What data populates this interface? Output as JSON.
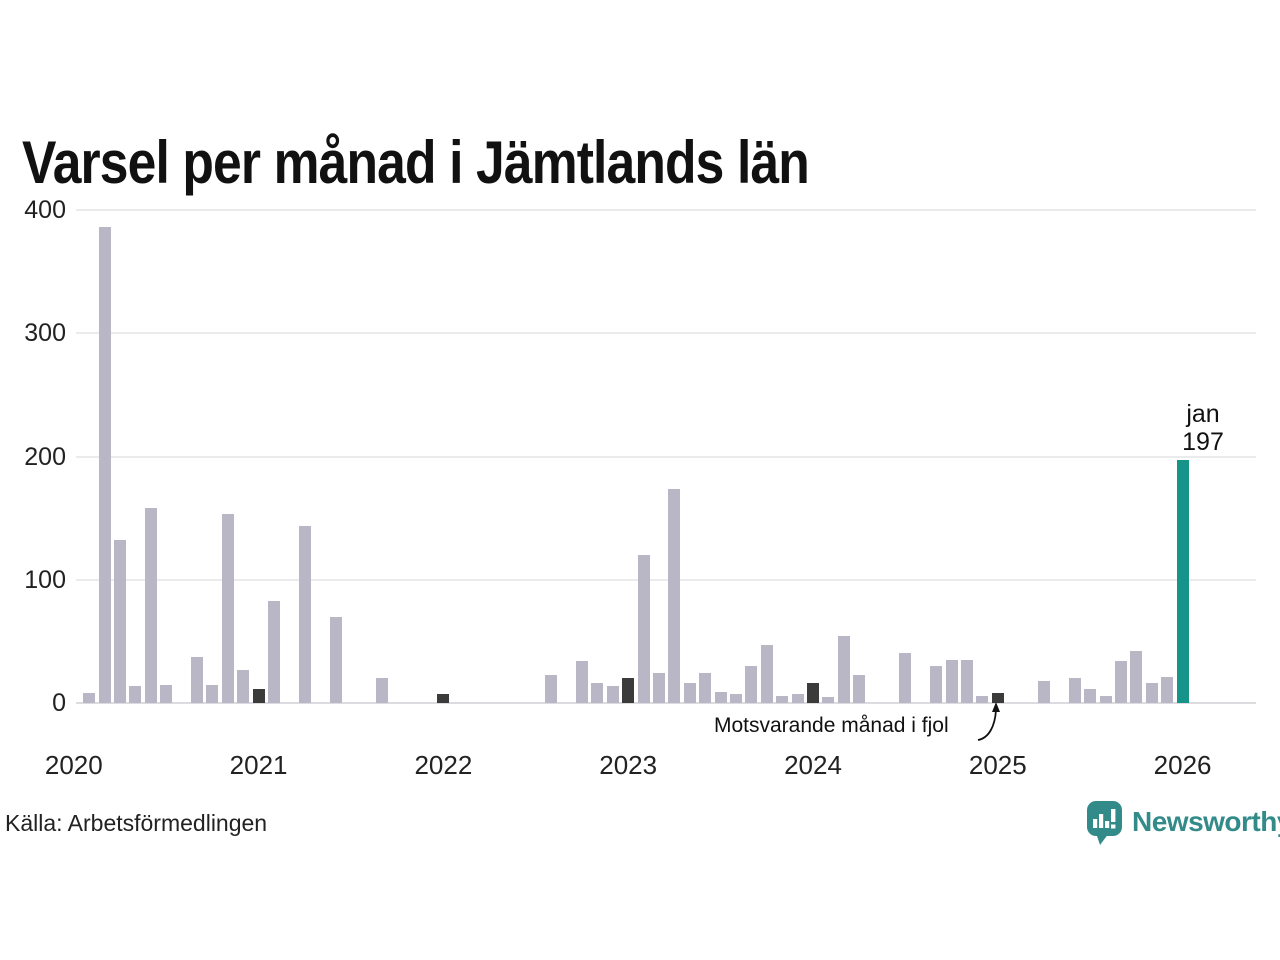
{
  "page": {
    "title": "Varsel per månad i Jämtlands län",
    "source": "Källa: Arbetsförmedlingen",
    "brand": {
      "name": "Newsworthy"
    }
  },
  "colors": {
    "bar_default": "#b9b6c5",
    "bar_previous_january": "#3b3b3b",
    "bar_latest": "#17948a",
    "grid": "#ebebee",
    "axis_line": "#dcdce0",
    "text": "#1a1a1a",
    "brand_teal": "#338b89"
  },
  "chart_data": {
    "type": "bar",
    "title": "Varsel per månad i Jämtlands län",
    "xlabel": "",
    "ylabel": "",
    "ylim": [
      0,
      400
    ],
    "yticks": [
      0,
      100,
      200,
      300,
      400
    ],
    "xticks": [
      "2020",
      "2021",
      "2022",
      "2023",
      "2024",
      "2025",
      "2026"
    ],
    "grid": "horizontal",
    "legend": "none",
    "highlight_label": {
      "month": "jan",
      "value": 197
    },
    "annotation": {
      "text": "Motsvarande månad i fjol",
      "points_to_month": "2025-01"
    },
    "series": [
      {
        "month": "2020-01",
        "value": 0,
        "role": "default"
      },
      {
        "month": "2020-02",
        "value": 8,
        "role": "default"
      },
      {
        "month": "2020-03",
        "value": 386,
        "role": "default"
      },
      {
        "month": "2020-04",
        "value": 132,
        "role": "default"
      },
      {
        "month": "2020-05",
        "value": 14,
        "role": "default"
      },
      {
        "month": "2020-06",
        "value": 158,
        "role": "default"
      },
      {
        "month": "2020-07",
        "value": 15,
        "role": "default"
      },
      {
        "month": "2020-08",
        "value": 0,
        "role": "default"
      },
      {
        "month": "2020-09",
        "value": 37,
        "role": "default"
      },
      {
        "month": "2020-10",
        "value": 15,
        "role": "default"
      },
      {
        "month": "2020-11",
        "value": 153,
        "role": "default"
      },
      {
        "month": "2020-12",
        "value": 27,
        "role": "default"
      },
      {
        "month": "2021-01",
        "value": 11,
        "role": "previous_january"
      },
      {
        "month": "2021-02",
        "value": 83,
        "role": "default"
      },
      {
        "month": "2021-03",
        "value": 0,
        "role": "default"
      },
      {
        "month": "2021-04",
        "value": 144,
        "role": "default"
      },
      {
        "month": "2021-05",
        "value": 0,
        "role": "default"
      },
      {
        "month": "2021-06",
        "value": 70,
        "role": "default"
      },
      {
        "month": "2021-07",
        "value": 0,
        "role": "default"
      },
      {
        "month": "2021-08",
        "value": 0,
        "role": "default"
      },
      {
        "month": "2021-09",
        "value": 20,
        "role": "default"
      },
      {
        "month": "2021-10",
        "value": 0,
        "role": "default"
      },
      {
        "month": "2021-11",
        "value": 0,
        "role": "default"
      },
      {
        "month": "2021-12",
        "value": 0,
        "role": "default"
      },
      {
        "month": "2022-01",
        "value": 7,
        "role": "previous_january"
      },
      {
        "month": "2022-02",
        "value": 0,
        "role": "default"
      },
      {
        "month": "2022-03",
        "value": 0,
        "role": "default"
      },
      {
        "month": "2022-04",
        "value": 0,
        "role": "default"
      },
      {
        "month": "2022-05",
        "value": 0,
        "role": "default"
      },
      {
        "month": "2022-06",
        "value": 0,
        "role": "default"
      },
      {
        "month": "2022-07",
        "value": 0,
        "role": "default"
      },
      {
        "month": "2022-08",
        "value": 23,
        "role": "default"
      },
      {
        "month": "2022-09",
        "value": 0,
        "role": "default"
      },
      {
        "month": "2022-10",
        "value": 34,
        "role": "default"
      },
      {
        "month": "2022-11",
        "value": 16,
        "role": "default"
      },
      {
        "month": "2022-12",
        "value": 14,
        "role": "default"
      },
      {
        "month": "2023-01",
        "value": 20,
        "role": "previous_january"
      },
      {
        "month": "2023-02",
        "value": 120,
        "role": "default"
      },
      {
        "month": "2023-03",
        "value": 24,
        "role": "default"
      },
      {
        "month": "2023-04",
        "value": 174,
        "role": "default"
      },
      {
        "month": "2023-05",
        "value": 16,
        "role": "default"
      },
      {
        "month": "2023-06",
        "value": 24,
        "role": "default"
      },
      {
        "month": "2023-07",
        "value": 9,
        "role": "default"
      },
      {
        "month": "2023-08",
        "value": 7,
        "role": "default"
      },
      {
        "month": "2023-09",
        "value": 30,
        "role": "default"
      },
      {
        "month": "2023-10",
        "value": 47,
        "role": "default"
      },
      {
        "month": "2023-11",
        "value": 6,
        "role": "default"
      },
      {
        "month": "2023-12",
        "value": 7,
        "role": "default"
      },
      {
        "month": "2024-01",
        "value": 16,
        "role": "previous_january"
      },
      {
        "month": "2024-02",
        "value": 5,
        "role": "default"
      },
      {
        "month": "2024-03",
        "value": 54,
        "role": "default"
      },
      {
        "month": "2024-04",
        "value": 23,
        "role": "default"
      },
      {
        "month": "2024-05",
        "value": 0,
        "role": "default"
      },
      {
        "month": "2024-06",
        "value": 0,
        "role": "default"
      },
      {
        "month": "2024-07",
        "value": 41,
        "role": "default"
      },
      {
        "month": "2024-08",
        "value": 0,
        "role": "default"
      },
      {
        "month": "2024-09",
        "value": 30,
        "role": "default"
      },
      {
        "month": "2024-10",
        "value": 35,
        "role": "default"
      },
      {
        "month": "2024-11",
        "value": 35,
        "role": "default"
      },
      {
        "month": "2024-12",
        "value": 6,
        "role": "default"
      },
      {
        "month": "2025-01",
        "value": 8,
        "role": "previous_january"
      },
      {
        "month": "2025-02",
        "value": 0,
        "role": "default"
      },
      {
        "month": "2025-03",
        "value": 0,
        "role": "default"
      },
      {
        "month": "2025-04",
        "value": 18,
        "role": "default"
      },
      {
        "month": "2025-05",
        "value": 0,
        "role": "default"
      },
      {
        "month": "2025-06",
        "value": 20,
        "role": "default"
      },
      {
        "month": "2025-07",
        "value": 11,
        "role": "default"
      },
      {
        "month": "2025-08",
        "value": 6,
        "role": "default"
      },
      {
        "month": "2025-09",
        "value": 34,
        "role": "default"
      },
      {
        "month": "2025-10",
        "value": 42,
        "role": "default"
      },
      {
        "month": "2025-11",
        "value": 16,
        "role": "default"
      },
      {
        "month": "2025-12",
        "value": 21,
        "role": "default"
      },
      {
        "month": "2026-01",
        "value": 197,
        "role": "latest"
      }
    ]
  }
}
